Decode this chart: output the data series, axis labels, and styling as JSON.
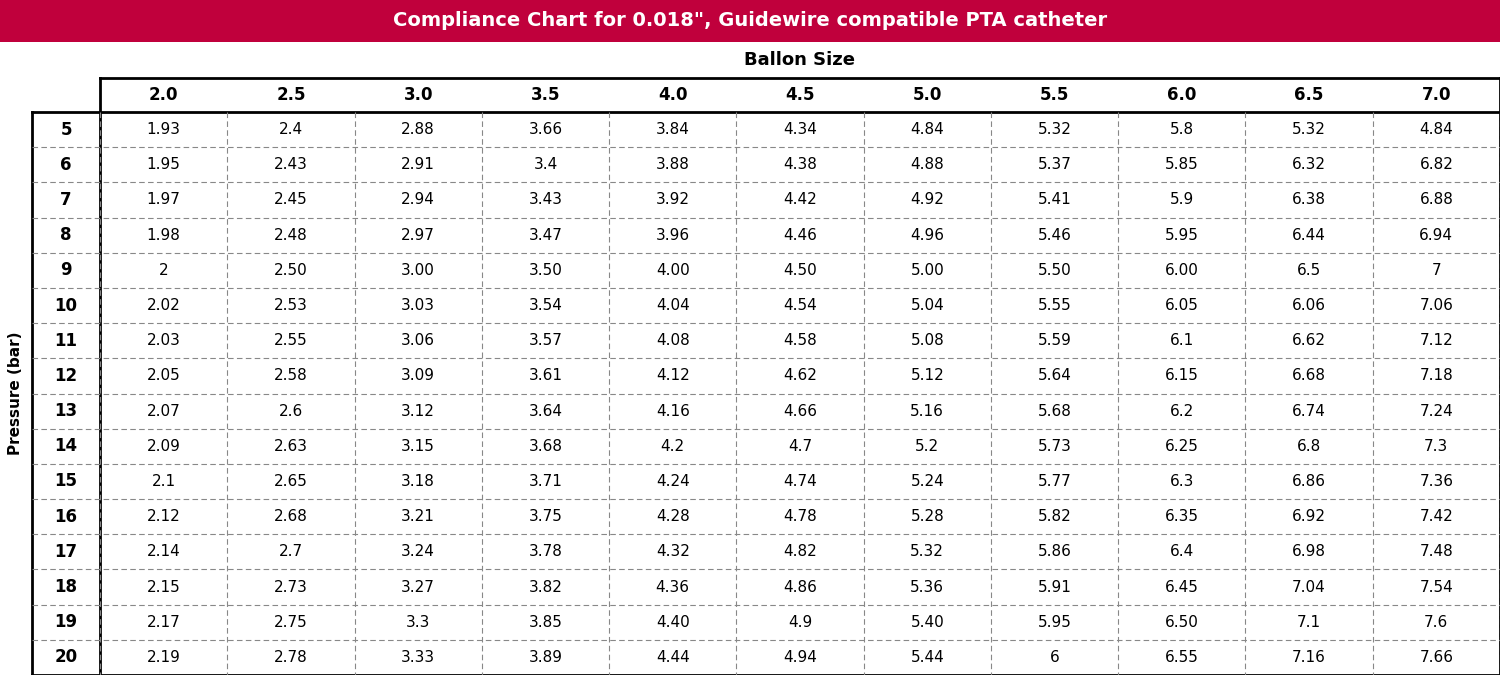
{
  "title": "Compliance Chart for 0.018\", Guidewire compatible PTA catheter",
  "col_header_label": "Ballon Size",
  "row_header_label": "Pressure (bar)",
  "balloon_sizes": [
    "2.0",
    "2.5",
    "3.0",
    "3.5",
    "4.0",
    "4.5",
    "5.0",
    "5.5",
    "6.0",
    "6.5",
    "7.0"
  ],
  "pressures": [
    "5",
    "6",
    "7",
    "8",
    "9",
    "10",
    "11",
    "12",
    "13",
    "14",
    "15",
    "16",
    "17",
    "18",
    "19",
    "20"
  ],
  "values": [
    [
      "1.93",
      "2.4",
      "2.88",
      "3.66",
      "3.84",
      "4.34",
      "4.84",
      "5.32",
      "5.8",
      "5.32",
      "4.84"
    ],
    [
      "1.95",
      "2.43",
      "2.91",
      "3.4",
      "3.88",
      "4.38",
      "4.88",
      "5.37",
      "5.85",
      "6.32",
      "6.82"
    ],
    [
      "1.97",
      "2.45",
      "2.94",
      "3.43",
      "3.92",
      "4.42",
      "4.92",
      "5.41",
      "5.9",
      "6.38",
      "6.88"
    ],
    [
      "1.98",
      "2.48",
      "2.97",
      "3.47",
      "3.96",
      "4.46",
      "4.96",
      "5.46",
      "5.95",
      "6.44",
      "6.94"
    ],
    [
      "2",
      "2.50",
      "3.00",
      "3.50",
      "4.00",
      "4.50",
      "5.00",
      "5.50",
      "6.00",
      "6.5",
      "7"
    ],
    [
      "2.02",
      "2.53",
      "3.03",
      "3.54",
      "4.04",
      "4.54",
      "5.04",
      "5.55",
      "6.05",
      "6.06",
      "7.06"
    ],
    [
      "2.03",
      "2.55",
      "3.06",
      "3.57",
      "4.08",
      "4.58",
      "5.08",
      "5.59",
      "6.1",
      "6.62",
      "7.12"
    ],
    [
      "2.05",
      "2.58",
      "3.09",
      "3.61",
      "4.12",
      "4.62",
      "5.12",
      "5.64",
      "6.15",
      "6.68",
      "7.18"
    ],
    [
      "2.07",
      "2.6",
      "3.12",
      "3.64",
      "4.16",
      "4.66",
      "5.16",
      "5.68",
      "6.2",
      "6.74",
      "7.24"
    ],
    [
      "2.09",
      "2.63",
      "3.15",
      "3.68",
      "4.2",
      "4.7",
      "5.2",
      "5.73",
      "6.25",
      "6.8",
      "7.3"
    ],
    [
      "2.1",
      "2.65",
      "3.18",
      "3.71",
      "4.24",
      "4.74",
      "5.24",
      "5.77",
      "6.3",
      "6.86",
      "7.36"
    ],
    [
      "2.12",
      "2.68",
      "3.21",
      "3.75",
      "4.28",
      "4.78",
      "5.28",
      "5.82",
      "6.35",
      "6.92",
      "7.42"
    ],
    [
      "2.14",
      "2.7",
      "3.24",
      "3.78",
      "4.32",
      "4.82",
      "5.32",
      "5.86",
      "6.4",
      "6.98",
      "7.48"
    ],
    [
      "2.15",
      "2.73",
      "3.27",
      "3.82",
      "4.36",
      "4.86",
      "5.36",
      "5.91",
      "6.45",
      "7.04",
      "7.54"
    ],
    [
      "2.17",
      "2.75",
      "3.3",
      "3.85",
      "4.40",
      "4.9",
      "5.40",
      "5.95",
      "6.50",
      "7.1",
      "7.6"
    ],
    [
      "2.19",
      "2.78",
      "3.33",
      "3.89",
      "4.44",
      "4.94",
      "5.44",
      "6",
      "6.55",
      "7.16",
      "7.66"
    ]
  ],
  "title_bg_color": "#C0003C",
  "title_text_color": "#FFFFFF",
  "title_fontsize": 14,
  "col_header_fontsize": 13,
  "balloon_header_fontsize": 12,
  "pressure_fontsize": 12,
  "data_fontsize": 11
}
